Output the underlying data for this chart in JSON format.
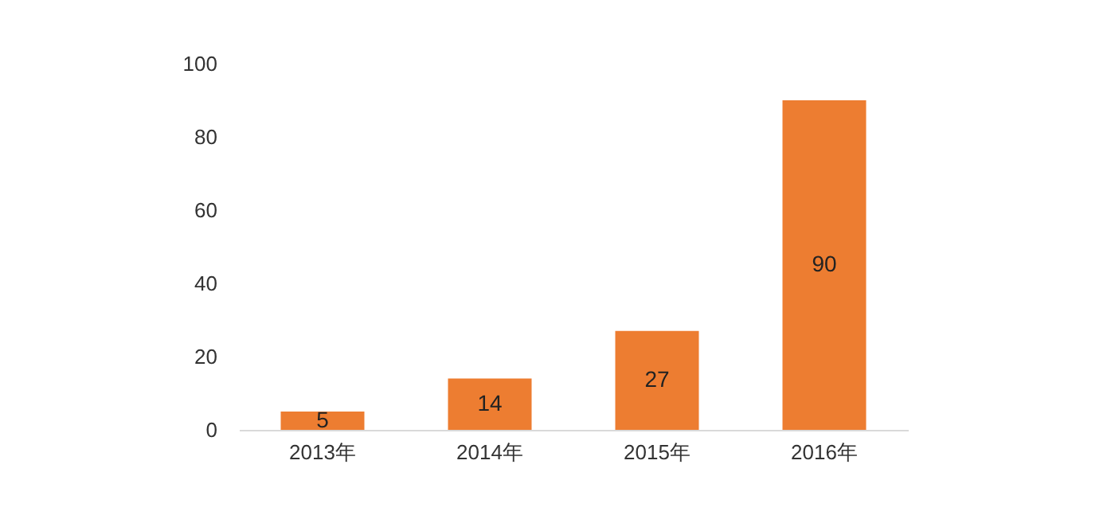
{
  "chart_data": {
    "type": "bar",
    "categories": [
      "2013年",
      "2014年",
      "2015年",
      "2016年"
    ],
    "values": [
      5,
      14,
      27,
      90
    ],
    "color": "#ed7d31",
    "ylim": [
      0,
      100
    ],
    "yticks": [
      0,
      20,
      40,
      60,
      80,
      100
    ],
    "grid": false,
    "data_labels": true
  }
}
